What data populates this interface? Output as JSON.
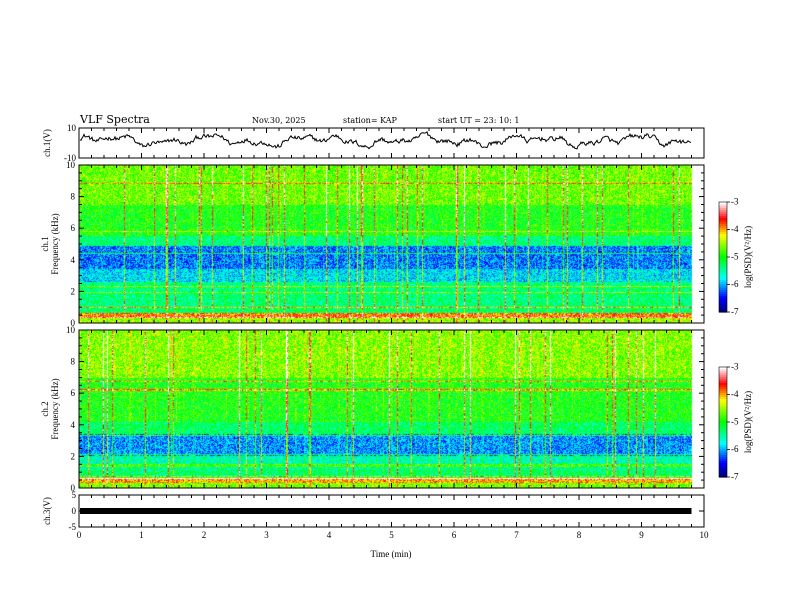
{
  "header": {
    "title": "VLF Spectra",
    "date": "Nov.30, 2025",
    "station": "station= KAP",
    "start": "start  UT  =   23: 10: 1"
  },
  "chart_data": [
    {
      "name": "ch1-waveform",
      "type": "line",
      "ylabel": "ch.1(V)",
      "ylim": [
        -10,
        10
      ],
      "yticks": [
        {
          "v": 10,
          "label": "10"
        },
        {
          "v": -10,
          "label": "-10"
        }
      ],
      "xlim": [
        0,
        10
      ],
      "mean": 1.5,
      "amplitude": 4.5
    },
    {
      "name": "ch1-spectrogram",
      "type": "heatmap",
      "ylabel": "ch.1\nFrequency  (kHz)",
      "ylim": [
        0,
        10
      ],
      "yticks": [
        "0",
        "2",
        "4",
        "6",
        "8",
        "10"
      ],
      "xlim": [
        0,
        10
      ],
      "colorbar": {
        "label": "log(PSD)(V²/Hz)",
        "range": [
          -7,
          -3
        ],
        "ticks": [
          "-3",
          "-4",
          "-5",
          "-6",
          "-7"
        ]
      }
    },
    {
      "name": "ch2-spectrogram",
      "type": "heatmap",
      "ylabel": "ch.2\nFrequency  (kHz)",
      "ylim": [
        0,
        10
      ],
      "yticks": [
        "0",
        "2",
        "4",
        "6",
        "8",
        "10"
      ],
      "xlim": [
        0,
        10
      ],
      "colorbar": {
        "label": "log(PSD)(V²/Hz)",
        "range": [
          -7,
          -3
        ],
        "ticks": [
          "-3",
          "-4",
          "-5",
          "-6",
          "-7"
        ]
      }
    },
    {
      "name": "ch3-waveform",
      "type": "line",
      "ylabel": "ch.3(V)",
      "ylim": [
        -5,
        5
      ],
      "yticks": [
        {
          "v": 5,
          "label": "5"
        },
        {
          "v": 0,
          "label": "0"
        },
        {
          "v": -5,
          "label": "-5"
        }
      ],
      "xlim": [
        0,
        10
      ],
      "mean": 0
    }
  ],
  "xaxis": {
    "label": "Time  (min)",
    "range": [
      0,
      10
    ],
    "ticks": [
      "0",
      "1",
      "2",
      "3",
      "4",
      "5",
      "6",
      "7",
      "8",
      "9",
      "10"
    ],
    "data_end": 9.8
  },
  "colors": {
    "red": "#ff0000",
    "yellow": "#ffff00",
    "green": "#00ff00",
    "cyan": "#00ffff",
    "blue": "#0000ff",
    "navy": "#000080"
  }
}
